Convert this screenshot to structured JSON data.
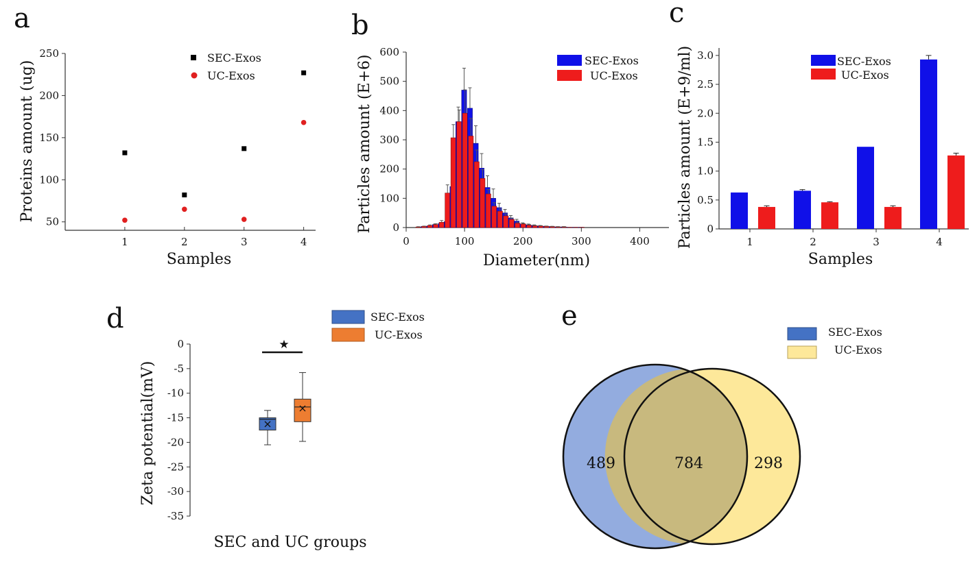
{
  "figure": {
    "panel_letters": [
      "a",
      "b",
      "c",
      "d",
      "e"
    ]
  },
  "chart_data": [
    {
      "panel": "a",
      "type": "scatter",
      "title": "",
      "xlabel": "Samples",
      "ylabel": "Proteins amount (ug)",
      "xlim": [
        0,
        4.2
      ],
      "ylim": [
        40,
        250
      ],
      "xticks": [
        1,
        2,
        3,
        4
      ],
      "yticks": [
        50,
        100,
        150,
        200,
        250
      ],
      "series": [
        {
          "name": "SEC-Exos",
          "marker": "square",
          "color": "#000000",
          "x": [
            1,
            2,
            3,
            4
          ],
          "y": [
            132,
            82,
            137,
            227
          ]
        },
        {
          "name": "UC-Exos",
          "marker": "circle",
          "color": "#e02020",
          "x": [
            1,
            2,
            3,
            4
          ],
          "y": [
            52,
            65,
            53,
            168
          ]
        }
      ],
      "legend": [
        "SEC-Exos",
        "UC-Exos"
      ],
      "legend_position": "top-right"
    },
    {
      "panel": "b",
      "type": "bar",
      "title": "",
      "xlabel": "Diameter(nm)",
      "ylabel": "Particles amount (E+6)",
      "xlim": [
        0,
        450
      ],
      "ylim": [
        0,
        600
      ],
      "xticks": [
        0,
        100,
        200,
        300,
        400
      ],
      "yticks": [
        0,
        100,
        200,
        300,
        400,
        500,
        600
      ],
      "x": [
        25,
        35,
        45,
        55,
        65,
        75,
        85,
        95,
        105,
        115,
        125,
        135,
        145,
        155,
        165,
        175,
        185,
        195,
        205,
        215,
        225,
        235,
        245,
        255,
        265,
        275,
        285,
        295,
        305,
        315,
        325,
        335,
        345,
        355,
        365,
        375,
        385,
        395,
        405
      ],
      "series": [
        {
          "name": "UC-Exos",
          "color": "#ee1c1c",
          "values": [
            2,
            4,
            7,
            10,
            18,
            118,
            307,
            362,
            391,
            313,
            225,
            168,
            115,
            73,
            56,
            40,
            28,
            15,
            12,
            8,
            6,
            5,
            4,
            3,
            2,
            2,
            1,
            1,
            1,
            0,
            0,
            0,
            0,
            0,
            0,
            0,
            0,
            0,
            0
          ],
          "errors": [
            1,
            1,
            2,
            3,
            6,
            28,
            45,
            40,
            80,
            60,
            40,
            30,
            15,
            12,
            8,
            6,
            4,
            3,
            2,
            2,
            1,
            1,
            1,
            1,
            1,
            1,
            0,
            0,
            0,
            0,
            0,
            0,
            0,
            0,
            0,
            0,
            0,
            0,
            0
          ]
        },
        {
          "name": "SEC-Exos",
          "color": "#1010e8",
          "values": [
            3,
            5,
            10,
            14,
            20,
            140,
            362,
            470,
            408,
            288,
            203,
            137,
            100,
            68,
            50,
            33,
            22,
            12,
            9,
            7,
            5,
            4,
            3,
            2,
            2,
            1,
            1,
            1,
            0,
            0,
            0,
            0,
            0,
            0,
            0,
            0,
            0,
            0,
            0
          ],
          "errors": [
            1,
            1,
            2,
            3,
            5,
            15,
            50,
            75,
            70,
            60,
            50,
            40,
            32,
            15,
            12,
            8,
            6,
            4,
            3,
            2,
            2,
            1,
            1,
            1,
            1,
            0,
            0,
            0,
            0,
            0,
            0,
            0,
            0,
            0,
            0,
            0,
            0,
            0,
            0
          ]
        }
      ],
      "legend": [
        "SEC-Exos",
        "UC-Exos"
      ],
      "legend_position": "top-right"
    },
    {
      "panel": "c",
      "type": "bar",
      "title": "",
      "xlabel": "Samples",
      "ylabel": "Particles amount (E+9/ml)",
      "ylim": [
        0,
        3.2
      ],
      "categories": [
        "1",
        "2",
        "3",
        "4"
      ],
      "yticks": [
        "0",
        "0.5",
        "1.0",
        "1.5",
        "2.0",
        "2.5",
        "3.0"
      ],
      "series": [
        {
          "name": "SEC-Exos",
          "color": "#1010e8",
          "values": [
            0.63,
            0.66,
            1.42,
            2.93
          ],
          "errors": [
            0,
            0.02,
            0,
            0.07
          ]
        },
        {
          "name": "UC-Exos",
          "color": "#ee1c1c",
          "values": [
            0.38,
            0.46,
            0.38,
            1.27
          ],
          "errors": [
            0.02,
            0.01,
            0.02,
            0.04
          ]
        }
      ],
      "legend": [
        "SEC-Exos",
        "UC-Exos"
      ],
      "legend_position": "top-right"
    },
    {
      "panel": "d",
      "type": "box",
      "title": "",
      "xlabel": "SEC and UC groups",
      "ylabel": "Zeta potential(mV)",
      "ylim": [
        -35,
        0
      ],
      "yticks": [
        "0",
        "-5",
        "-10",
        "-15",
        "-20",
        "-25",
        "-30",
        "-35"
      ],
      "series": [
        {
          "name": "SEC-Exos",
          "color": "#4472c4",
          "min": -20.5,
          "q1": -17.5,
          "median": -15.3,
          "q3": -15.0,
          "max": -13.5,
          "mean": -16.3
        },
        {
          "name": "UC-Exos",
          "color": "#ed7d31",
          "min": -19.8,
          "q1": -15.8,
          "median": -12.8,
          "q3": -11.2,
          "max": -5.8,
          "mean": -13.1
        }
      ],
      "significance": "★",
      "legend": [
        "SEC-Exos",
        "UC-Exos"
      ],
      "legend_position": "top-right"
    },
    {
      "panel": "e",
      "type": "venn",
      "title": "",
      "sets": [
        {
          "name": "SEC-Exos",
          "color": "#93acdf",
          "only": "489"
        },
        {
          "name": "UC-Exos",
          "color": "#fde89a",
          "only": "298"
        }
      ],
      "intersection": "784",
      "legend": [
        "SEC-Exos",
        "UC-Exos"
      ],
      "legend_position": "top-right"
    }
  ]
}
